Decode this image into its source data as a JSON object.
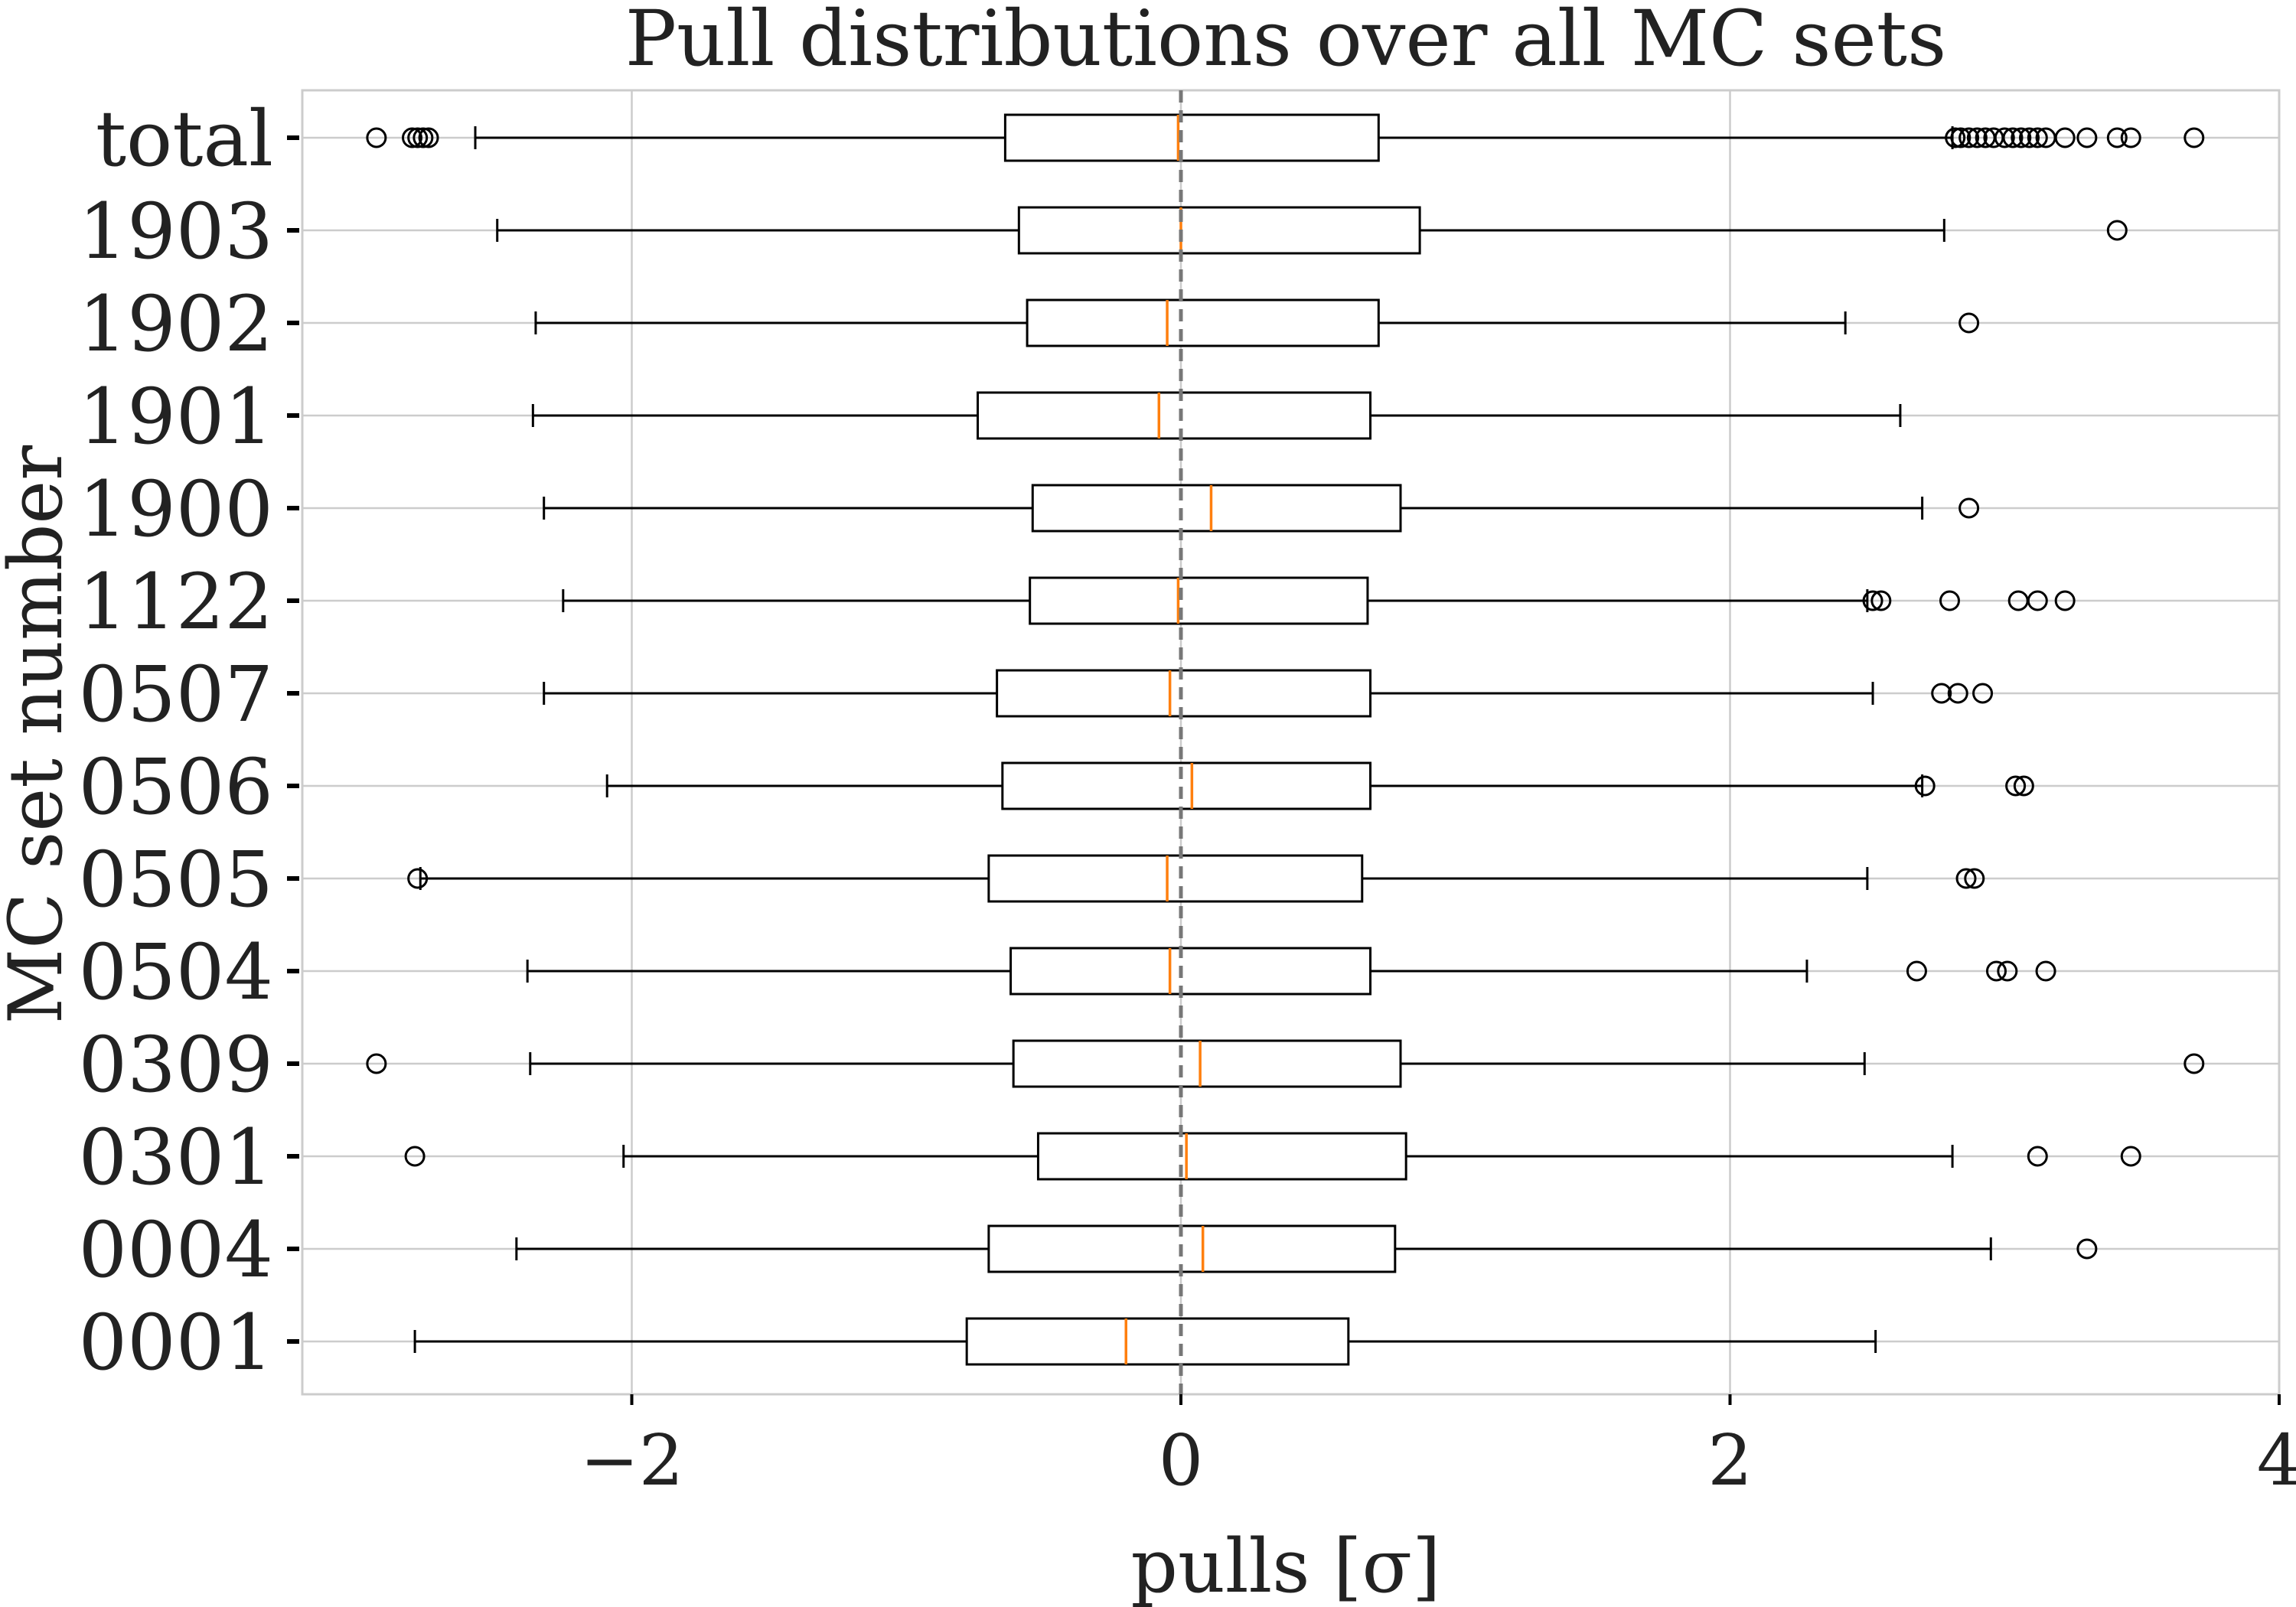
{
  "chart_data": {
    "type": "boxplot",
    "orientation": "horizontal",
    "title": "Pull distributions over all MC sets",
    "xlabel": "pulls [σ]",
    "ylabel": "MC set number",
    "xlim": [
      -3.2,
      4.0
    ],
    "x_ticks": [
      -2,
      0,
      2,
      4
    ],
    "x_tick_labels": [
      "−2",
      "0",
      "2",
      "4"
    ],
    "grid": true,
    "reference_line": {
      "x": 0,
      "style": "dashed",
      "color": "#777777"
    },
    "colors": {
      "box": "#000000",
      "median": "#ff7f0e",
      "grid": "#cccccc",
      "frame": "#cccccc",
      "text": "#222222"
    },
    "categories": [
      "total",
      "1903",
      "1902",
      "1901",
      "1900",
      "1122",
      "0507",
      "0506",
      "0505",
      "0504",
      "0309",
      "0301",
      "0004",
      "0001"
    ],
    "boxes": [
      {
        "label": "total",
        "whisker_low": -2.57,
        "q1": -0.64,
        "median": -0.01,
        "q3": 0.72,
        "whisker_high": 2.81,
        "outliers": [
          -2.93,
          -2.8,
          -2.78,
          -2.76,
          -2.74,
          2.82,
          2.84,
          2.87,
          2.9,
          2.93,
          2.96,
          3.0,
          3.03,
          3.06,
          3.09,
          3.12,
          3.15,
          3.22,
          3.3,
          3.41,
          3.46,
          3.69
        ]
      },
      {
        "label": "1903",
        "whisker_low": -2.49,
        "q1": -0.59,
        "median": 0.0,
        "q3": 0.87,
        "whisker_high": 2.78,
        "outliers": [
          3.41
        ]
      },
      {
        "label": "1902",
        "whisker_low": -2.35,
        "q1": -0.56,
        "median": -0.05,
        "q3": 0.72,
        "whisker_high": 2.42,
        "outliers": [
          2.87
        ]
      },
      {
        "label": "1901",
        "whisker_low": -2.36,
        "q1": -0.74,
        "median": -0.08,
        "q3": 0.69,
        "whisker_high": 2.62,
        "outliers": []
      },
      {
        "label": "1900",
        "whisker_low": -2.32,
        "q1": -0.54,
        "median": 0.11,
        "q3": 0.8,
        "whisker_high": 2.7,
        "outliers": [
          2.87
        ]
      },
      {
        "label": "1122",
        "whisker_low": -2.25,
        "q1": -0.55,
        "median": -0.01,
        "q3": 0.68,
        "whisker_high": 2.5,
        "outliers": [
          2.52,
          2.55,
          2.8,
          3.05,
          3.12,
          3.22
        ]
      },
      {
        "label": "0507",
        "whisker_low": -2.32,
        "q1": -0.67,
        "median": -0.04,
        "q3": 0.69,
        "whisker_high": 2.52,
        "outliers": [
          2.77,
          2.83,
          2.92
        ]
      },
      {
        "label": "0506",
        "whisker_low": -2.09,
        "q1": -0.65,
        "median": 0.04,
        "q3": 0.69,
        "whisker_high": 2.7,
        "outliers": [
          2.71,
          3.04,
          3.07
        ]
      },
      {
        "label": "0505",
        "whisker_low": -2.77,
        "q1": -0.7,
        "median": -0.05,
        "q3": 0.66,
        "whisker_high": 2.5,
        "outliers": [
          -2.78,
          2.86,
          2.89
        ]
      },
      {
        "label": "0504",
        "whisker_low": -2.38,
        "q1": -0.62,
        "median": -0.04,
        "q3": 0.69,
        "whisker_high": 2.28,
        "outliers": [
          2.68,
          2.97,
          3.01,
          3.15
        ]
      },
      {
        "label": "0309",
        "whisker_low": -2.37,
        "q1": -0.61,
        "median": 0.07,
        "q3": 0.8,
        "whisker_high": 2.49,
        "outliers": [
          -2.93,
          3.69
        ]
      },
      {
        "label": "0301",
        "whisker_low": -2.03,
        "q1": -0.52,
        "median": 0.02,
        "q3": 0.82,
        "whisker_high": 2.81,
        "outliers": [
          -2.79,
          3.12,
          3.46
        ]
      },
      {
        "label": "0004",
        "whisker_low": -2.42,
        "q1": -0.7,
        "median": 0.08,
        "q3": 0.78,
        "whisker_high": 2.95,
        "outliers": [
          3.3
        ]
      },
      {
        "label": "0001",
        "whisker_low": -2.79,
        "q1": -0.78,
        "median": -0.2,
        "q3": 0.61,
        "whisker_high": 2.53,
        "outliers": []
      }
    ]
  }
}
